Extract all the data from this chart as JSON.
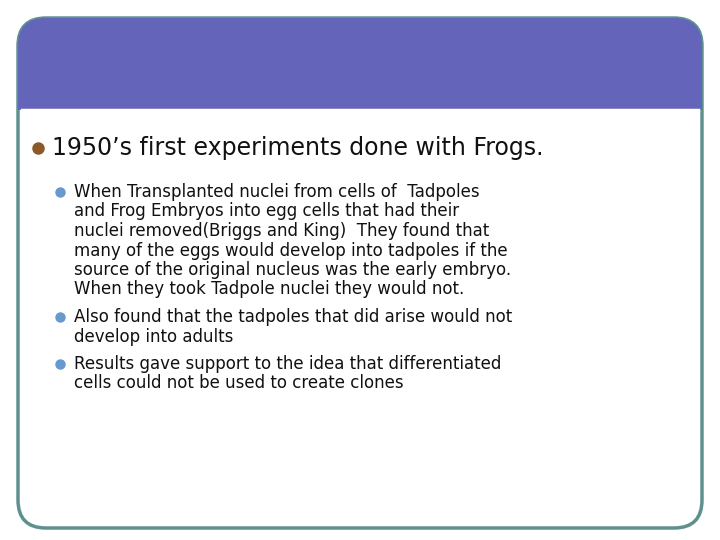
{
  "bg_color": "#ffffff",
  "header_color": "#6464bb",
  "box_border_color": "#5e9090",
  "box_bg_color": "#ffffff",
  "header_line_color": "#ffffff",
  "bullet1_color": "#8B5A2B",
  "bullet2_color": "#6699cc",
  "title_fontsize": 17,
  "body_fontsize": 12,
  "bullet1": "1950’s first experiments done with Frogs.",
  "sub1_line1": "When Transplanted nuclei from cells of  Tadpoles",
  "sub1_line2": "and Frog Embryos into egg cells that had their",
  "sub1_line3": "nuclei removed(Briggs and King)  They found that",
  "sub1_line4": "many of the eggs would develop into tadpoles if the",
  "sub1_line5": "source of the original nucleus was the early embryo.",
  "sub1_line6": "When they took Tadpole nuclei they would not.",
  "sub2_line1": "Also found that the tadpoles that did arise would not",
  "sub2_line2": "develop into adults",
  "sub3_line1": "Results gave support to the idea that differentiated",
  "sub3_line2": "cells could not be used to create clones"
}
